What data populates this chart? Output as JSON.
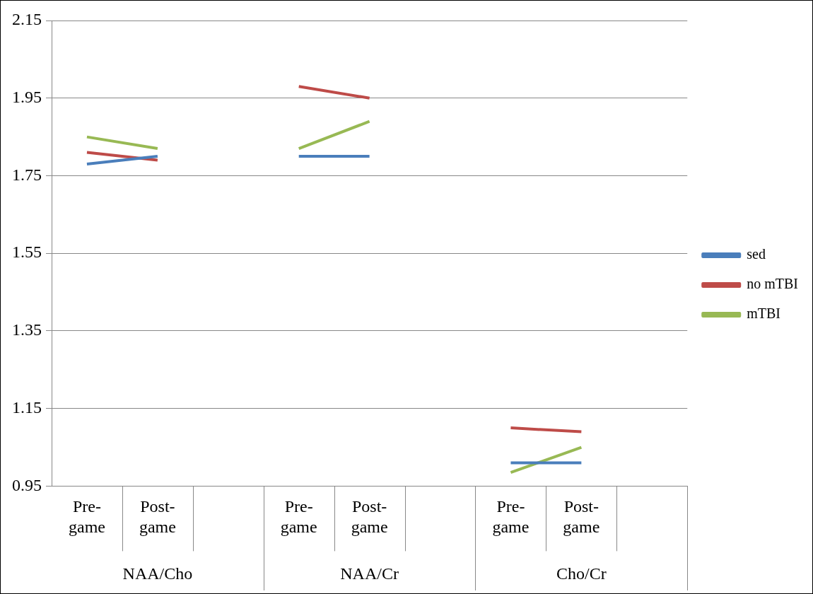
{
  "chart_data": {
    "type": "line",
    "categories": [
      "Pre-game",
      "Post-game",
      null,
      "Pre-game",
      "Post-game",
      null,
      "Pre-game",
      "Post-game",
      null
    ],
    "annotations": [
      "NAA/Cho",
      "NAA/Cr",
      "Cho/Cr"
    ],
    "series": [
      {
        "name": "sed",
        "color": "#4a7ebb",
        "values": [
          1.78,
          1.8,
          null,
          1.8,
          1.8,
          null,
          1.01,
          1.01,
          null
        ]
      },
      {
        "name": "no mTBI",
        "color": "#be4b48",
        "values": [
          1.81,
          1.79,
          null,
          1.98,
          1.95,
          null,
          1.1,
          1.09,
          null
        ]
      },
      {
        "name": "mTBI",
        "color": "#98b954",
        "values": [
          1.85,
          1.82,
          null,
          1.82,
          1.89,
          null,
          0.985,
          1.05,
          null
        ]
      }
    ],
    "ylim": [
      0.95,
      2.15
    ],
    "yticks": [
      0.95,
      1.15,
      1.35,
      1.55,
      1.75,
      1.95,
      2.15
    ],
    "grid": "y",
    "legend": "right",
    "marker": "none",
    "line_style": "solid"
  }
}
